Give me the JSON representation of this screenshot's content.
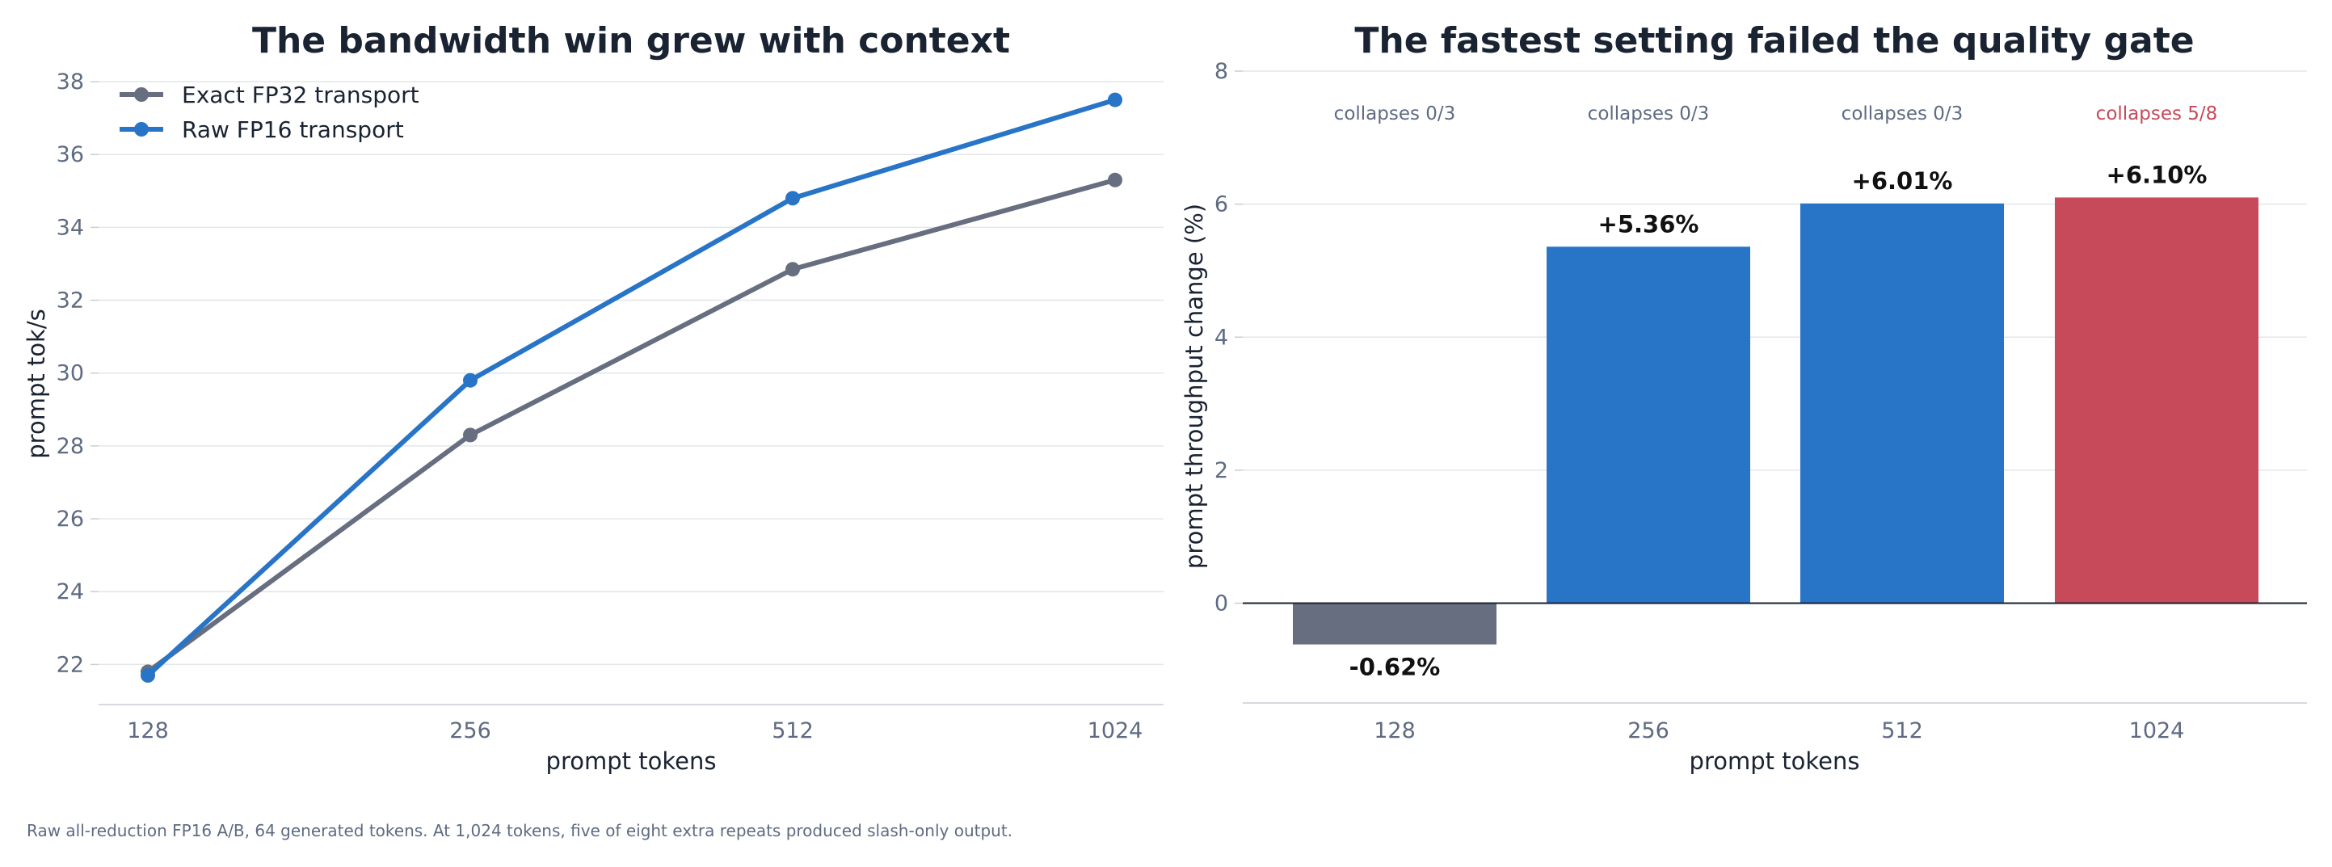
{
  "chart_data": [
    {
      "type": "line",
      "title": "The bandwidth win grew with context",
      "xlabel": "prompt tokens",
      "ylabel": "prompt tok/s",
      "x_categories": [
        "128",
        "256",
        "512",
        "1024"
      ],
      "yticks": [
        "22",
        "24",
        "26",
        "28",
        "30",
        "32",
        "34",
        "36",
        "38"
      ],
      "ylim": [
        20.9,
        38.6
      ],
      "grid": "horizontal",
      "legend_position": "top-left",
      "series": [
        {
          "name": "Exact FP32 transport",
          "color": "#666e80",
          "values": [
            21.8,
            28.3,
            32.85,
            35.3
          ]
        },
        {
          "name": "Raw FP16 transport",
          "color": "#2874c7",
          "values": [
            21.7,
            29.8,
            34.8,
            37.5
          ]
        }
      ]
    },
    {
      "type": "bar",
      "title": "The fastest setting failed the quality gate",
      "xlabel": "prompt tokens",
      "ylabel": "prompt throughput change (%)",
      "categories": [
        "128",
        "256",
        "512",
        "1024"
      ],
      "values": [
        -0.62,
        5.36,
        6.01,
        6.1
      ],
      "value_labels": [
        "-0.62%",
        "+5.36%",
        "+6.01%",
        "+6.10%"
      ],
      "annotations": [
        "collapses 0/3",
        "collapses 0/3",
        "collapses 0/3",
        "collapses 5/8"
      ],
      "annotation_colors": [
        "#5e6b82",
        "#5e6b82",
        "#5e6b82",
        "#c64a5a"
      ],
      "colors": [
        "#666e80",
        "#2874c7",
        "#2874c7",
        "#c64a5a"
      ],
      "yticks": [
        "0",
        "2",
        "4",
        "6",
        "8"
      ],
      "ylim": [
        -1.5,
        8.0
      ],
      "grid": "horizontal"
    }
  ],
  "footnote": "Raw all-reduction FP16 A/B, 64 generated tokens. At 1,024 tokens, five of eight extra repeats produced slash-only output."
}
